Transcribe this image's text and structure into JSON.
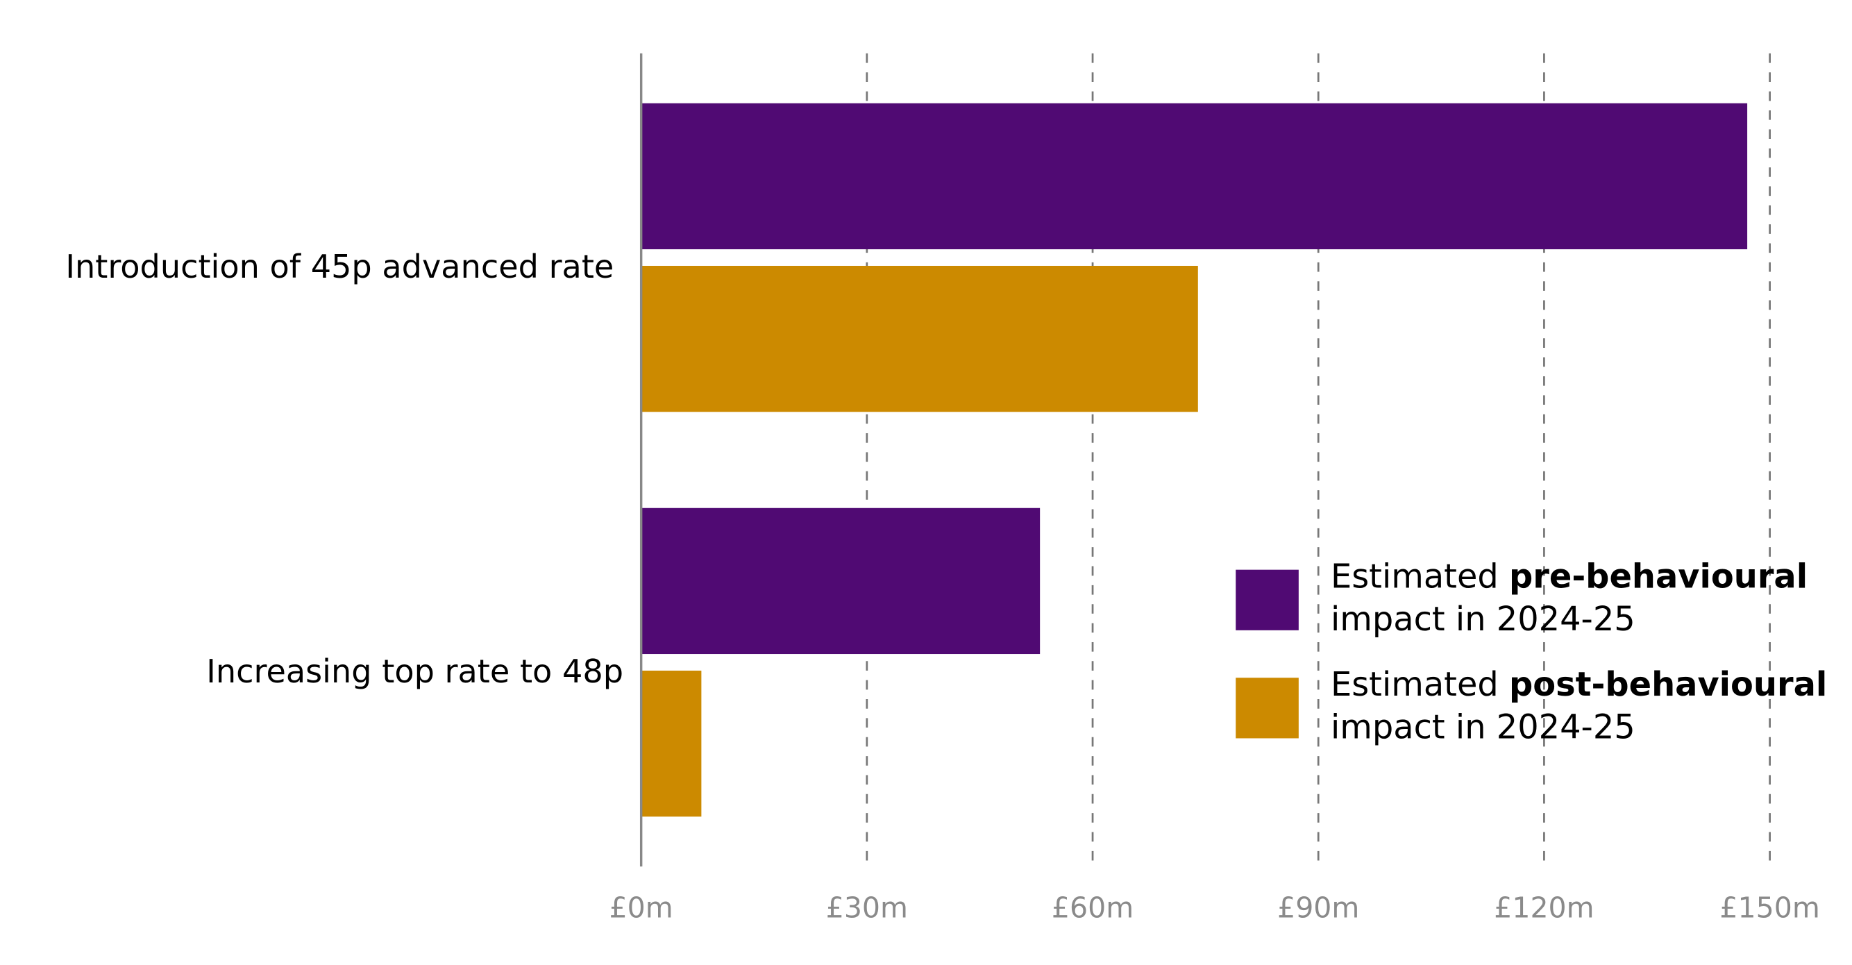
{
  "chart_data": {
    "type": "bar",
    "orientation": "horizontal",
    "categories": [
      "Introduction of 45p advanced rate",
      "Increasing top rate to 48p"
    ],
    "series": [
      {
        "name": "Estimated pre-behavioural impact in 2024-25",
        "name_prefix": "Estimated ",
        "name_bold": "pre-behavioural",
        "name_suffix": "impact in 2024-25",
        "color": "#500a73",
        "values": [
          147,
          53
        ]
      },
      {
        "name": "Estimated post-behavioural impact in 2024-25",
        "name_prefix": "Estimated ",
        "name_bold": "post-behavioural",
        "name_suffix": "impact in 2024-25",
        "color": "#cc8a00",
        "values": [
          74,
          8
        ]
      }
    ],
    "xlim": [
      0,
      150
    ],
    "xticks": [
      0,
      30,
      60,
      90,
      120,
      150
    ],
    "xtick_labels": [
      "£0m",
      "£30m",
      "£60m",
      "£90m",
      "£120m",
      "£150m"
    ],
    "grid": "vertical dashed",
    "legend": "bottom-right",
    "title": "",
    "xlabel": "",
    "ylabel": ""
  }
}
